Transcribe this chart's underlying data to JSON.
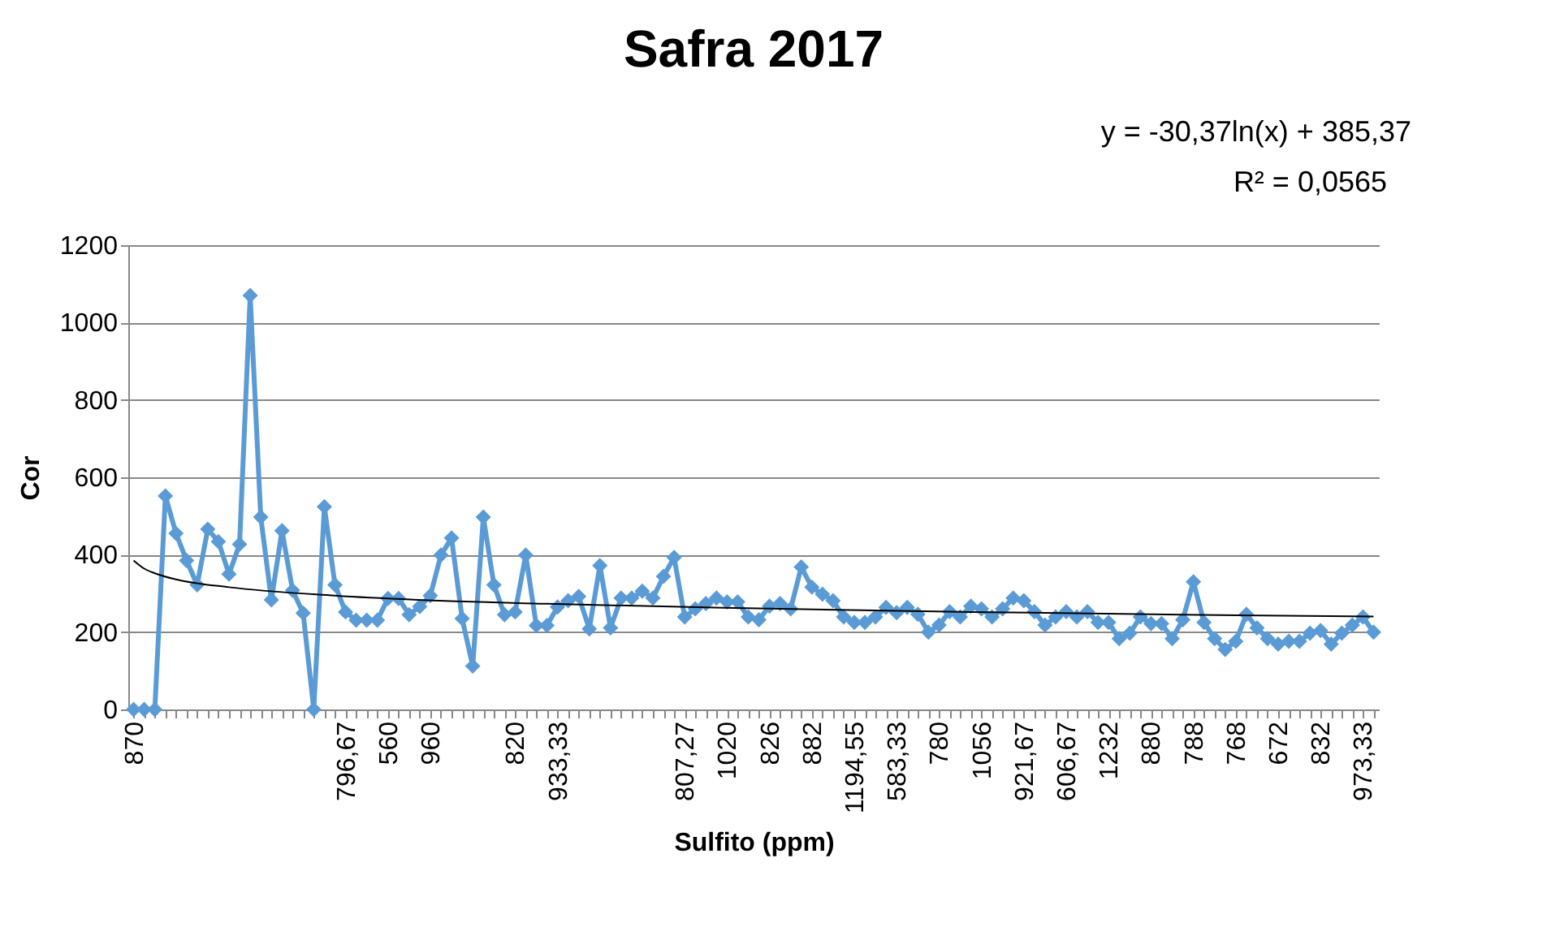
{
  "chart_data": {
    "type": "line",
    "title": "Safra 2017",
    "xlabel": "Sulfito (ppm)",
    "ylabel": "Cor",
    "annotations": [
      "y = -30,37ln(x) + 385,37",
      "R² = 0,0565"
    ],
    "categories": [
      "870",
      null,
      null,
      null,
      null,
      null,
      null,
      null,
      null,
      null,
      null,
      null,
      null,
      null,
      null,
      null,
      null,
      null,
      null,
      null,
      "796,67",
      null,
      null,
      null,
      "560",
      null,
      null,
      null,
      "960",
      null,
      null,
      null,
      null,
      null,
      null,
      null,
      "820",
      null,
      null,
      null,
      "933,33",
      null,
      null,
      null,
      null,
      null,
      null,
      null,
      null,
      null,
      null,
      null,
      "807,27",
      null,
      null,
      null,
      "1020",
      null,
      null,
      null,
      "826",
      null,
      null,
      null,
      "882",
      null,
      null,
      null,
      "1194,55",
      null,
      null,
      null,
      "583,33",
      null,
      null,
      null,
      "780",
      null,
      null,
      null,
      "1056",
      null,
      null,
      null,
      "921,67",
      null,
      null,
      null,
      "606,67",
      null,
      null,
      null,
      "1232",
      null,
      null,
      null,
      "880",
      null,
      null,
      null,
      "788",
      null,
      null,
      null,
      "768",
      null,
      null,
      null,
      "672",
      null,
      null,
      null,
      "832",
      null,
      null,
      null,
      "973,33",
      null
    ],
    "series": [
      {
        "color": "#5b9bd5",
        "marker": "diamond",
        "values": [
          0,
          0,
          0,
          552,
          455,
          385,
          322,
          466,
          434,
          350,
          427,
          1070,
          497,
          283,
          462,
          308,
          249,
          0,
          524,
          322,
          252,
          231,
          231,
          231,
          287,
          287,
          245,
          266,
          294,
          399,
          443,
          235,
          112,
          497,
          322,
          245,
          252,
          399,
          217,
          217,
          265,
          281,
          292,
          208,
          372,
          211,
          288,
          288,
          306,
          288,
          344,
          393,
          239,
          260,
          274,
          288,
          278,
          278,
          239,
          232,
          267,
          274,
          260,
          368,
          316,
          298,
          281,
          239,
          225,
          225,
          239,
          264,
          250,
          264,
          246,
          200,
          218,
          253,
          239,
          267,
          260,
          239,
          260,
          288,
          281,
          253,
          218,
          239,
          253,
          239,
          253,
          225,
          225,
          183,
          197,
          239,
          222,
          222,
          183,
          232,
          330,
          225,
          183,
          155,
          176,
          246,
          211,
          183,
          169,
          176,
          176,
          197,
          204,
          169,
          197,
          218,
          239,
          200
        ]
      },
      {
        "type": "line",
        "color": "#000000",
        "marker": "none",
        "values": [
          385,
          364,
          352,
          null,
          336,
          null,
          null,
          null,
          null,
          316,
          null,
          null,
          null,
          null,
          null,
          null,
          null,
          null,
          null,
          294,
          null,
          null,
          null,
          null,
          null,
          null,
          null,
          null,
          null,
          null,
          null,
          null,
          null,
          null,
          null,
          null,
          null,
          null,
          null,
          273,
          null,
          null,
          null,
          null,
          null,
          null,
          null,
          null,
          null,
          null,
          null,
          null,
          null,
          null,
          null,
          null,
          null,
          null,
          null,
          261,
          null,
          null,
          null,
          null,
          null,
          null,
          null,
          null,
          null,
          null,
          null,
          null,
          null,
          null,
          null,
          null,
          null,
          null,
          null,
          252,
          null,
          null,
          null,
          null,
          null,
          null,
          null,
          null,
          null,
          null,
          null,
          null,
          null,
          null,
          null,
          null,
          null,
          null,
          null,
          245,
          null,
          null,
          null,
          null,
          null,
          null,
          null,
          null,
          null,
          null,
          null,
          null,
          null,
          null,
          null,
          null,
          null,
          240
        ]
      }
    ],
    "ylim": [
      0,
      1200
    ],
    "yticks": [
      0,
      200,
      400,
      600,
      800,
      1000,
      1200
    ],
    "grid": "y"
  }
}
